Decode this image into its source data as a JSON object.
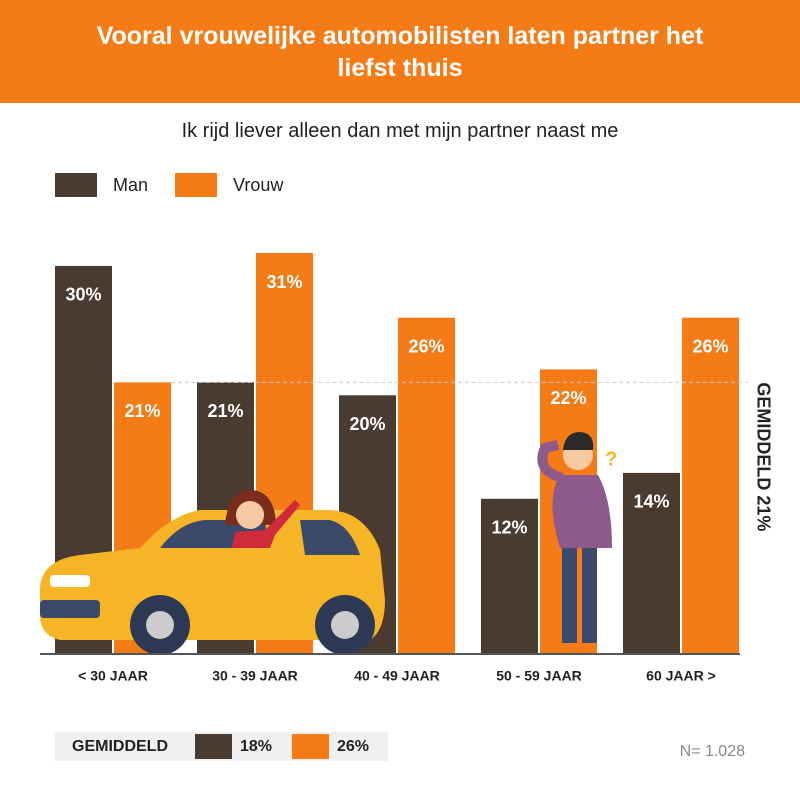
{
  "chart_data": {
    "type": "bar",
    "title": "Vooral vrouwelijke automobilisten laten partner het liefst thuis",
    "subtitle": "Ik rijd liever alleen dan met mijn partner naast me",
    "categories": [
      "< 30 JAAR",
      "30 - 39 JAAR",
      "40 - 49 JAAR",
      "50 - 59 JAAR",
      "60 JAAR >"
    ],
    "series": [
      {
        "name": "Man",
        "color": "#4a3b30",
        "values": [
          30,
          21,
          20,
          12,
          14
        ],
        "value_labels": [
          "30%",
          "21%",
          "20%",
          "12%",
          "14%"
        ],
        "average": 18,
        "average_label": "18%"
      },
      {
        "name": "Vrouw",
        "color": "#f47b16",
        "values": [
          21,
          31,
          26,
          22,
          26
        ],
        "value_labels": [
          "21%",
          "31%",
          "26%",
          "22%",
          "26%"
        ],
        "average": 26,
        "average_label": "26%"
      }
    ],
    "ylim": [
      0,
      31
    ],
    "overall_average": 21,
    "overall_average_label": "GEMIDDELD 21%",
    "averages_label": "GEMIDDELD",
    "sample_size": "N= 1.028"
  }
}
